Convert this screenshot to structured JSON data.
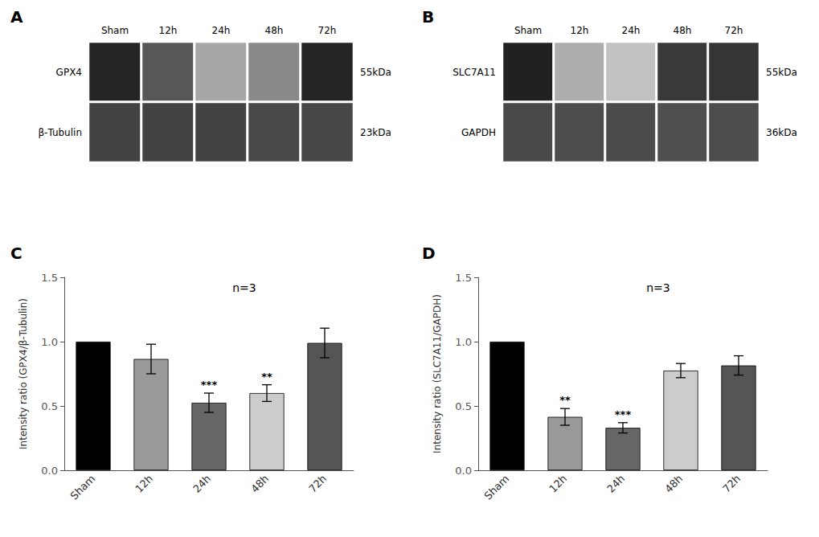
{
  "chart_data": [
    {
      "type": "heatmap",
      "title": "A",
      "categories": [
        "Sham",
        "12h",
        "24h",
        "48h",
        "72h"
      ],
      "rows": [
        "GPX4",
        "β-Tubulin"
      ],
      "annotations": [
        "55kDa",
        "23kDa"
      ],
      "cells": [
        [
          0.9,
          0.65,
          0.25,
          0.4,
          0.9
        ],
        [
          0.75,
          0.75,
          0.75,
          0.72,
          0.73
        ]
      ],
      "zlim": [
        0,
        1
      ]
    },
    {
      "type": "heatmap",
      "title": "B",
      "categories": [
        "Sham",
        "12h",
        "24h",
        "48h",
        "72h"
      ],
      "rows": [
        "SLC7A11",
        "GAPDH"
      ],
      "annotations": [
        "55kDa",
        "36kDa"
      ],
      "cells": [
        [
          0.92,
          0.22,
          0.12,
          0.8,
          0.82
        ],
        [
          0.72,
          0.7,
          0.71,
          0.69,
          0.7
        ]
      ],
      "zlim": [
        0,
        1
      ]
    },
    {
      "type": "bar",
      "title": "C",
      "categories": [
        "Sham",
        "12h",
        "24h",
        "48h",
        "72h"
      ],
      "values": [
        1.0,
        0.865,
        0.525,
        0.6,
        0.99
      ],
      "errors": [
        0.0,
        0.115,
        0.075,
        0.065,
        0.115
      ],
      "significance": [
        null,
        null,
        "***",
        "**",
        null
      ],
      "colors": [
        "#000000",
        "#999999",
        "#666666",
        "#cccccc",
        "#555555"
      ],
      "annotations": [
        "n=3"
      ],
      "ylabel": "Intensity ratio (GPX4/β-Tubulin)",
      "ylim": [
        0,
        1.5
      ],
      "yticks": [
        {
          "value": 0.0,
          "label": "0.0"
        },
        0.5,
        {
          "value": 1.0,
          "label": "1.0"
        },
        1.5
      ],
      "grid": false
    },
    {
      "type": "bar",
      "title": "D",
      "categories": [
        "Sham",
        "12h",
        "24h",
        "48h",
        "72h"
      ],
      "values": [
        1.0,
        0.415,
        0.33,
        0.775,
        0.815
      ],
      "errors": [
        0.0,
        0.065,
        0.04,
        0.055,
        0.075
      ],
      "significance": [
        null,
        "**",
        "***",
        null,
        null
      ],
      "colors": [
        "#000000",
        "#999999",
        "#666666",
        "#cccccc",
        "#555555"
      ],
      "annotations": [
        "n=3"
      ],
      "ylabel": "Intensity ratio (SLC7A11/GAPDH)",
      "ylim": [
        0,
        1.5
      ],
      "yticks": [
        {
          "value": 0.0,
          "label": "0.0"
        },
        0.5,
        {
          "value": 1.0,
          "label": "1.0"
        },
        1.5
      ],
      "grid": false
    }
  ]
}
